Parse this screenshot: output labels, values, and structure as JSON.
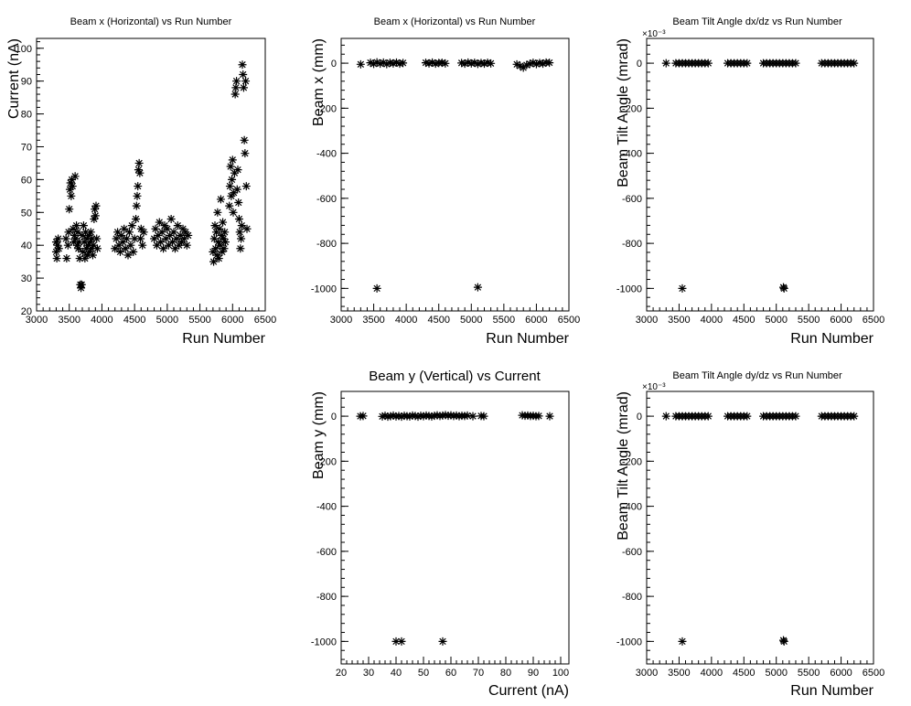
{
  "chart_data": [
    {
      "id": "p1",
      "type": "scatter",
      "title": "Beam x (Horizontal) vs Run Number",
      "xlabel": "Run Number",
      "ylabel": "Current (nA)",
      "xlim": [
        3000,
        6500
      ],
      "ylim": [
        20,
        103
      ],
      "xticks": [
        3000,
        3500,
        4000,
        4500,
        5000,
        5500,
        6000,
        6500
      ],
      "yticks": [
        20,
        30,
        40,
        50,
        60,
        70,
        80,
        90,
        100
      ],
      "multiplier": "",
      "marker": "asterisk",
      "points": [
        [
          3300,
          38
        ],
        [
          3300,
          41
        ],
        [
          3310,
          36
        ],
        [
          3320,
          40
        ],
        [
          3330,
          42
        ],
        [
          3340,
          39
        ],
        [
          3450,
          42
        ],
        [
          3460,
          36
        ],
        [
          3480,
          40
        ],
        [
          3490,
          44
        ],
        [
          3500,
          51
        ],
        [
          3510,
          57
        ],
        [
          3520,
          59
        ],
        [
          3530,
          55
        ],
        [
          3540,
          60
        ],
        [
          3550,
          58
        ],
        [
          3560,
          45
        ],
        [
          3570,
          41
        ],
        [
          3580,
          43
        ],
        [
          3590,
          61
        ],
        [
          3600,
          42
        ],
        [
          3610,
          46
        ],
        [
          3620,
          40
        ],
        [
          3630,
          44
        ],
        [
          3640,
          39
        ],
        [
          3650,
          41
        ],
        [
          3660,
          36
        ],
        [
          3670,
          28
        ],
        [
          3680,
          27
        ],
        [
          3690,
          28
        ],
        [
          3700,
          43
        ],
        [
          3710,
          38
        ],
        [
          3720,
          46
        ],
        [
          3730,
          41
        ],
        [
          3740,
          36
        ],
        [
          3750,
          44
        ],
        [
          3760,
          39
        ],
        [
          3770,
          42
        ],
        [
          3780,
          37
        ],
        [
          3790,
          40
        ],
        [
          3800,
          43
        ],
        [
          3810,
          38
        ],
        [
          3820,
          41
        ],
        [
          3830,
          44
        ],
        [
          3840,
          39
        ],
        [
          3850,
          42
        ],
        [
          3860,
          37
        ],
        [
          3870,
          40
        ],
        [
          3880,
          48
        ],
        [
          3890,
          51
        ],
        [
          3900,
          49
        ],
        [
          3910,
          52
        ],
        [
          3920,
          42
        ],
        [
          3930,
          39
        ],
        [
          4200,
          39
        ],
        [
          4220,
          42
        ],
        [
          4240,
          44
        ],
        [
          4260,
          40
        ],
        [
          4280,
          38
        ],
        [
          4300,
          43
        ],
        [
          4320,
          41
        ],
        [
          4340,
          45
        ],
        [
          4360,
          39
        ],
        [
          4380,
          42
        ],
        [
          4400,
          37
        ],
        [
          4420,
          44
        ],
        [
          4440,
          40
        ],
        [
          4460,
          46
        ],
        [
          4480,
          38
        ],
        [
          4500,
          42
        ],
        [
          4520,
          48
        ],
        [
          4530,
          52
        ],
        [
          4540,
          55
        ],
        [
          4550,
          58
        ],
        [
          4560,
          63
        ],
        [
          4570,
          65
        ],
        [
          4580,
          62
        ],
        [
          4590,
          42
        ],
        [
          4600,
          45
        ],
        [
          4620,
          40
        ],
        [
          4640,
          44
        ],
        [
          4800,
          42
        ],
        [
          4820,
          45
        ],
        [
          4840,
          40
        ],
        [
          4860,
          43
        ],
        [
          4880,
          47
        ],
        [
          4900,
          41
        ],
        [
          4920,
          44
        ],
        [
          4940,
          39
        ],
        [
          4960,
          46
        ],
        [
          4980,
          42
        ],
        [
          5000,
          45
        ],
        [
          5020,
          40
        ],
        [
          5040,
          43
        ],
        [
          5060,
          48
        ],
        [
          5080,
          41
        ],
        [
          5100,
          44
        ],
        [
          5120,
          39
        ],
        [
          5140,
          42
        ],
        [
          5160,
          46
        ],
        [
          5180,
          40
        ],
        [
          5200,
          43
        ],
        [
          5220,
          41
        ],
        [
          5240,
          45
        ],
        [
          5260,
          42
        ],
        [
          5280,
          44
        ],
        [
          5300,
          40
        ],
        [
          5320,
          43
        ],
        [
          5700,
          38
        ],
        [
          5710,
          35
        ],
        [
          5720,
          42
        ],
        [
          5730,
          46
        ],
        [
          5740,
          39
        ],
        [
          5750,
          44
        ],
        [
          5760,
          37
        ],
        [
          5770,
          50
        ],
        [
          5780,
          41
        ],
        [
          5790,
          36
        ],
        [
          5800,
          45
        ],
        [
          5810,
          40
        ],
        [
          5820,
          54
        ],
        [
          5830,
          43
        ],
        [
          5840,
          38
        ],
        [
          5850,
          47
        ],
        [
          5860,
          42
        ],
        [
          5870,
          39
        ],
        [
          5880,
          44
        ],
        [
          5890,
          41
        ],
        [
          5950,
          52
        ],
        [
          5960,
          58
        ],
        [
          5970,
          64
        ],
        [
          5980,
          55
        ],
        [
          5990,
          60
        ],
        [
          6000,
          66
        ],
        [
          6010,
          50
        ],
        [
          6020,
          56
        ],
        [
          6030,
          62
        ],
        [
          6040,
          86
        ],
        [
          6050,
          88
        ],
        [
          6060,
          90
        ],
        [
          6070,
          57
        ],
        [
          6080,
          63
        ],
        [
          6090,
          53
        ],
        [
          6100,
          48
        ],
        [
          6110,
          44
        ],
        [
          6120,
          39
        ],
        [
          6130,
          42
        ],
        [
          6140,
          46
        ],
        [
          6150,
          95
        ],
        [
          6160,
          92
        ],
        [
          6170,
          88
        ],
        [
          6180,
          72
        ],
        [
          6190,
          68
        ],
        [
          6200,
          90
        ],
        [
          6210,
          58
        ],
        [
          6220,
          45
        ]
      ]
    },
    {
      "id": "p2",
      "type": "scatter",
      "title": "Beam x (Horizontal) vs Run Number",
      "xlabel": "Run Number",
      "ylabel": "Beam x (mm)",
      "xlim": [
        3000,
        6500
      ],
      "ylim": [
        -1100,
        110
      ],
      "xticks": [
        3000,
        3500,
        4000,
        4500,
        5000,
        5500,
        6000,
        6500
      ],
      "yticks": [
        -1000,
        -800,
        -600,
        -400,
        -200,
        0
      ],
      "multiplier": "",
      "marker": "asterisk",
      "points": [
        [
          3300,
          -5
        ],
        [
          3450,
          2
        ],
        [
          3500,
          -3
        ],
        [
          3550,
          4
        ],
        [
          3600,
          -2
        ],
        [
          3650,
          3
        ],
        [
          3700,
          -4
        ],
        [
          3750,
          2
        ],
        [
          3800,
          -1
        ],
        [
          3850,
          3
        ],
        [
          3900,
          -2
        ],
        [
          3950,
          1
        ],
        [
          4300,
          2
        ],
        [
          4350,
          -1
        ],
        [
          4400,
          3
        ],
        [
          4450,
          -2
        ],
        [
          4500,
          1
        ],
        [
          4550,
          2
        ],
        [
          4600,
          -1
        ],
        [
          4850,
          1
        ],
        [
          4900,
          -2
        ],
        [
          4950,
          3
        ],
        [
          5000,
          -1
        ],
        [
          5050,
          2
        ],
        [
          5100,
          -3
        ],
        [
          5150,
          1
        ],
        [
          5200,
          -2
        ],
        [
          5250,
          2
        ],
        [
          5300,
          -1
        ],
        [
          5700,
          -5
        ],
        [
          5750,
          -12
        ],
        [
          5800,
          -20
        ],
        [
          5850,
          -8
        ],
        [
          5900,
          -3
        ],
        [
          5950,
          2
        ],
        [
          6000,
          -4
        ],
        [
          6050,
          1
        ],
        [
          6100,
          -2
        ],
        [
          6150,
          3
        ],
        [
          6200,
          2
        ],
        [
          3550,
          -1000
        ],
        [
          5100,
          -995
        ]
      ]
    },
    {
      "id": "p3",
      "type": "scatter",
      "title": "Beam Tilt Angle dx/dz vs Run Number",
      "xlabel": "Run Number",
      "ylabel": "Beam Tilt Angle (mrad)",
      "xlim": [
        3000,
        6500
      ],
      "ylim": [
        -1100,
        110
      ],
      "xticks": [
        3000,
        3500,
        4000,
        4500,
        5000,
        5500,
        6000,
        6500
      ],
      "yticks": [
        -1000,
        -800,
        -600,
        -400,
        -200,
        0
      ],
      "multiplier": "×10⁻³",
      "marker": "asterisk",
      "points": [
        [
          3300,
          0
        ],
        [
          3450,
          0
        ],
        [
          3500,
          0
        ],
        [
          3550,
          0
        ],
        [
          3600,
          0
        ],
        [
          3650,
          0
        ],
        [
          3700,
          0
        ],
        [
          3750,
          0
        ],
        [
          3800,
          0
        ],
        [
          3850,
          0
        ],
        [
          3900,
          0
        ],
        [
          3950,
          0
        ],
        [
          4250,
          0
        ],
        [
          4300,
          0
        ],
        [
          4350,
          0
        ],
        [
          4400,
          0
        ],
        [
          4450,
          0
        ],
        [
          4500,
          0
        ],
        [
          4550,
          0
        ],
        [
          4800,
          0
        ],
        [
          4850,
          0
        ],
        [
          4900,
          0
        ],
        [
          4950,
          0
        ],
        [
          5000,
          0
        ],
        [
          5050,
          0
        ],
        [
          5100,
          0
        ],
        [
          5150,
          0
        ],
        [
          5200,
          0
        ],
        [
          5250,
          0
        ],
        [
          5300,
          0
        ],
        [
          5700,
          0
        ],
        [
          5750,
          0
        ],
        [
          5800,
          0
        ],
        [
          5850,
          0
        ],
        [
          5900,
          0
        ],
        [
          5950,
          0
        ],
        [
          6000,
          0
        ],
        [
          6050,
          0
        ],
        [
          6100,
          0
        ],
        [
          6150,
          0
        ],
        [
          6200,
          0
        ],
        [
          3550,
          -1000
        ],
        [
          5120,
          -1000
        ],
        [
          5110,
          -995
        ]
      ]
    },
    {
      "id": "p4",
      "type": "scatter",
      "title": "Beam y (Vertical) vs Current",
      "xlabel": "Current (nA)",
      "ylabel": "Beam y (mm)",
      "xlim": [
        20,
        103
      ],
      "ylim": [
        -1100,
        110
      ],
      "xticks": [
        20,
        30,
        40,
        50,
        60,
        70,
        80,
        90,
        100
      ],
      "yticks": [
        -1000,
        -800,
        -600,
        -400,
        -200,
        0
      ],
      "multiplier": "",
      "marker": "asterisk",
      "points": [
        [
          27,
          0
        ],
        [
          28,
          1
        ],
        [
          35,
          -1
        ],
        [
          36,
          2
        ],
        [
          37,
          -2
        ],
        [
          38,
          0
        ],
        [
          39,
          3
        ],
        [
          40,
          -1
        ],
        [
          41,
          1
        ],
        [
          42,
          -2
        ],
        [
          43,
          2
        ],
        [
          44,
          0
        ],
        [
          45,
          -1
        ],
        [
          46,
          3
        ],
        [
          47,
          1
        ],
        [
          48,
          -2
        ],
        [
          49,
          2
        ],
        [
          50,
          0
        ],
        [
          51,
          3
        ],
        [
          52,
          1
        ],
        [
          53,
          -1
        ],
        [
          54,
          2
        ],
        [
          55,
          4
        ],
        [
          56,
          1
        ],
        [
          57,
          3
        ],
        [
          58,
          5
        ],
        [
          59,
          2
        ],
        [
          60,
          4
        ],
        [
          61,
          1
        ],
        [
          62,
          3
        ],
        [
          63,
          0
        ],
        [
          64,
          2
        ],
        [
          65,
          1
        ],
        [
          66,
          3
        ],
        [
          68,
          0
        ],
        [
          71,
          1
        ],
        [
          72,
          0
        ],
        [
          86,
          4
        ],
        [
          87,
          2
        ],
        [
          88,
          3
        ],
        [
          89,
          1
        ],
        [
          90,
          2
        ],
        [
          91,
          0
        ],
        [
          92,
          1
        ],
        [
          96,
          0
        ],
        [
          40,
          -1000
        ],
        [
          42,
          -1000
        ],
        [
          57,
          -1000
        ]
      ]
    },
    {
      "id": "p5",
      "type": "scatter",
      "title": "Beam Tilt Angle dy/dz vs Run Number",
      "xlabel": "Run Number",
      "ylabel": "Beam Tilt Angle (mrad)",
      "xlim": [
        3000,
        6500
      ],
      "ylim": [
        -1100,
        110
      ],
      "xticks": [
        3000,
        3500,
        4000,
        4500,
        5000,
        5500,
        6000,
        6500
      ],
      "yticks": [
        -1000,
        -800,
        -600,
        -400,
        -200,
        0
      ],
      "multiplier": "×10⁻³",
      "marker": "asterisk",
      "points": [
        [
          3300,
          0
        ],
        [
          3450,
          0
        ],
        [
          3500,
          0
        ],
        [
          3550,
          0
        ],
        [
          3600,
          0
        ],
        [
          3650,
          0
        ],
        [
          3700,
          0
        ],
        [
          3750,
          0
        ],
        [
          3800,
          0
        ],
        [
          3850,
          0
        ],
        [
          3900,
          0
        ],
        [
          3950,
          0
        ],
        [
          4250,
          0
        ],
        [
          4300,
          0
        ],
        [
          4350,
          0
        ],
        [
          4400,
          0
        ],
        [
          4450,
          0
        ],
        [
          4500,
          0
        ],
        [
          4550,
          0
        ],
        [
          4800,
          0
        ],
        [
          4850,
          0
        ],
        [
          4900,
          0
        ],
        [
          4950,
          0
        ],
        [
          5000,
          0
        ],
        [
          5050,
          0
        ],
        [
          5100,
          0
        ],
        [
          5150,
          0
        ],
        [
          5200,
          0
        ],
        [
          5250,
          0
        ],
        [
          5300,
          0
        ],
        [
          5700,
          0
        ],
        [
          5750,
          0
        ],
        [
          5800,
          0
        ],
        [
          5850,
          0
        ],
        [
          5900,
          0
        ],
        [
          5950,
          0
        ],
        [
          6000,
          0
        ],
        [
          6050,
          0
        ],
        [
          6100,
          0
        ],
        [
          6150,
          0
        ],
        [
          6200,
          0
        ],
        [
          3550,
          -1000
        ],
        [
          5120,
          -1000
        ],
        [
          5110,
          -995
        ]
      ]
    }
  ]
}
